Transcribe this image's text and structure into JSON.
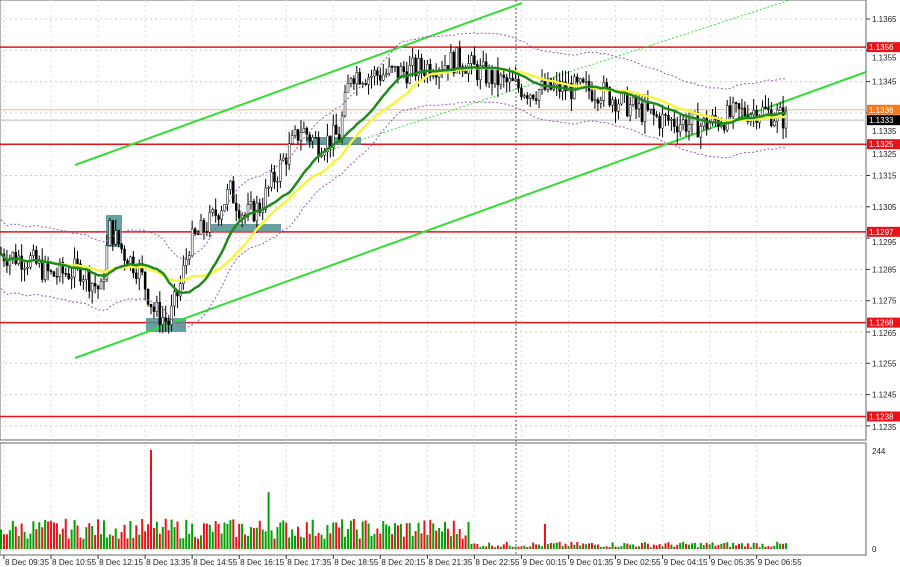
{
  "chart_data": {
    "type": "candlestick",
    "instrument_timeframe": "M5",
    "y_axis": {
      "ticks": [
        1.1365,
        1.1355,
        1.1345,
        1.1335,
        1.1325,
        1.1315,
        1.1305,
        1.1295,
        1.1285,
        1.1275,
        1.1265,
        1.1255,
        1.1245,
        1.1235
      ],
      "ylim": [
        1.1232,
        1.137
      ]
    },
    "x_axis": {
      "ticks": [
        "8 Dec 09:35",
        "8 Dec 10:55",
        "8 Dec 12:15",
        "8 Dec 13:35",
        "8 Dec 14:55",
        "8 Dec 16:15",
        "8 Dec 17:35",
        "8 Dec 18:55",
        "8 Dec 20:15",
        "8 Dec 21:35",
        "8 Dec 22:55",
        "9 Dec 00:15",
        "9 Dec 01:35",
        "9 Dec 02:55",
        "9 Dec 04:15",
        "9 Dec 05:35",
        "9 Dec 06:55"
      ]
    },
    "price_path": [
      [
        "8 Dec 09:30",
        1.129
      ],
      [
        "8 Dec 10:20",
        1.1288
      ],
      [
        "8 Dec 10:55",
        1.1283
      ],
      [
        "8 Dec 11:45",
        1.1285
      ],
      [
        "8 Dec 12:20",
        1.1278
      ],
      [
        "8 Dec 12:35",
        1.1298
      ],
      [
        "8 Dec 13:00",
        1.129
      ],
      [
        "8 Dec 13:25",
        1.1285
      ],
      [
        "8 Dec 13:50",
        1.1272
      ],
      [
        "8 Dec 14:15",
        1.1268
      ],
      [
        "8 Dec 14:35",
        1.128
      ],
      [
        "8 Dec 14:50",
        1.1293
      ],
      [
        "8 Dec 15:25",
        1.13
      ],
      [
        "8 Dec 16:00",
        1.131
      ],
      [
        "8 Dec 16:25",
        1.1302
      ],
      [
        "8 Dec 16:50",
        1.1305
      ],
      [
        "8 Dec 17:25",
        1.1318
      ],
      [
        "8 Dec 18:00",
        1.133
      ],
      [
        "8 Dec 18:30",
        1.1325
      ],
      [
        "8 Dec 19:05",
        1.1328
      ],
      [
        "8 Dec 19:25",
        1.1348
      ],
      [
        "8 Dec 19:55",
        1.1347
      ],
      [
        "8 Dec 20:50",
        1.1348
      ],
      [
        "8 Dec 21:40",
        1.135
      ],
      [
        "8 Dec 22:30",
        1.1352
      ],
      [
        "8 Dec 23:05",
        1.1348
      ],
      [
        "8 Dec 23:40",
        1.1345
      ],
      [
        "9 Dec 00:30",
        1.1342
      ],
      [
        "9 Dec 01:20",
        1.1343
      ],
      [
        "9 Dec 02:30",
        1.1342
      ],
      [
        "9 Dec 03:20",
        1.1337
      ],
      [
        "9 Dec 04:10",
        1.1333
      ],
      [
        "9 Dec 05:20",
        1.1331
      ],
      [
        "9 Dec 05:55",
        1.1333
      ],
      [
        "9 Dec 06:25",
        1.1335
      ],
      [
        "9 Dec 07:00",
        1.1336
      ],
      [
        "9 Dec 07:45",
        1.1333
      ]
    ],
    "levels": [
      {
        "price": "1.1356",
        "color": "#e8121b"
      },
      {
        "price": "1.1325",
        "color": "#e8121b"
      },
      {
        "price": "1.1297",
        "color": "#e8121b"
      },
      {
        "price": "1.1268",
        "color": "#e8121b"
      },
      {
        "price": "1.1238",
        "color": "#e8121b"
      }
    ],
    "ask_level": {
      "price": "1.1336",
      "color": "#f07a1e"
    },
    "current_price": "1.1333",
    "volume": {
      "ylim": [
        0,
        244
      ],
      "ticks": [
        "244",
        "0"
      ],
      "spikes": [
        [
          "8 Dec 13:45",
          244
        ],
        [
          "8 Dec 17:05",
          140
        ],
        [
          "9 Dec 00:55",
          62
        ]
      ],
      "colors": {
        "up": "#00a000",
        "down": "#e8121b"
      }
    },
    "colors": {
      "ma_fast": "#f5f542",
      "ma_slow": "#1f8a1f",
      "channel": "#33dd33",
      "envelope": "#9a5fb0",
      "highlight": "#4f8f8f"
    }
  }
}
